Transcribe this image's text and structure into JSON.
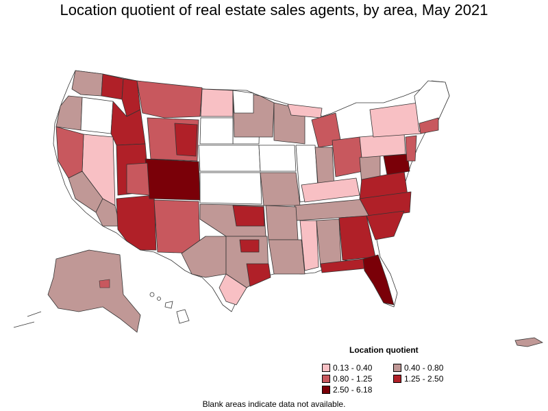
{
  "title": "Location quotient of real estate sales agents, by area, May 2021",
  "legend": {
    "title": "Location quotient",
    "items": [
      {
        "label": "0.13 - 0.40",
        "color": "#f8c0c4"
      },
      {
        "label": "0.40 - 0.80",
        "color": "#c09896"
      },
      {
        "label": "0.80 - 1.25",
        "color": "#c8585e"
      },
      {
        "label": "1.25 - 2.50",
        "color": "#b02028"
      },
      {
        "label": "2.50 - 6.18",
        "color": "#7a0008"
      }
    ]
  },
  "footnote": "Blank areas indicate data not available."
}
